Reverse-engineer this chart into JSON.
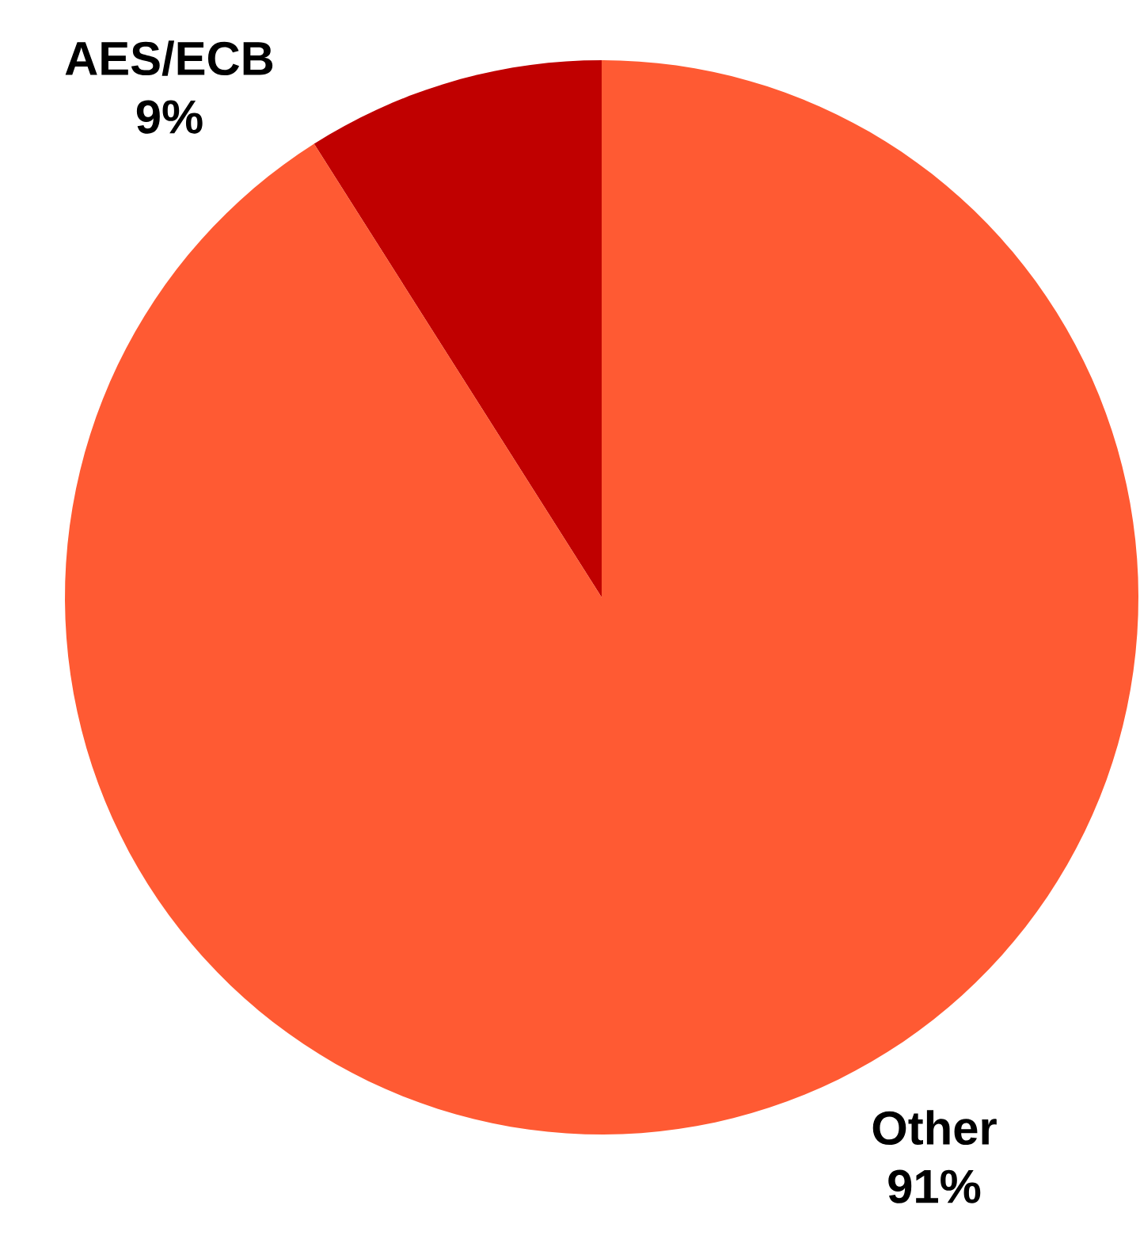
{
  "chart_data": {
    "type": "pie",
    "categories": [
      "AES/ECB",
      "Other"
    ],
    "values": [
      9,
      91
    ],
    "value_labels": [
      "9%",
      "91%"
    ],
    "colors": [
      "#c00000",
      "#ff5a33"
    ]
  }
}
